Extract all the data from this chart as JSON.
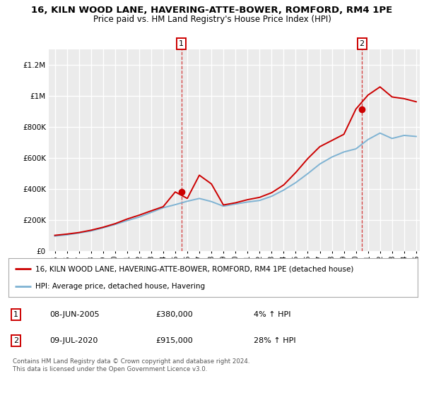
{
  "title_line1": "16, KILN WOOD LANE, HAVERING-ATTE-BOWER, ROMFORD, RM4 1PE",
  "title_line2": "Price paid vs. HM Land Registry's House Price Index (HPI)",
  "ylim": [
    0,
    1300000
  ],
  "yticks": [
    0,
    200000,
    400000,
    600000,
    800000,
    1000000,
    1200000
  ],
  "ytick_labels": [
    "£0",
    "£200K",
    "£400K",
    "£600K",
    "£800K",
    "£1M",
    "£1.2M"
  ],
  "background_color": "#ffffff",
  "plot_bg_color": "#ebebeb",
  "grid_color": "#ffffff",
  "marker1_value": 380000,
  "marker2_value": 915000,
  "legend_line1": "16, KILN WOOD LANE, HAVERING-ATTE-BOWER, ROMFORD, RM4 1PE (detached house)",
  "legend_line2": "HPI: Average price, detached house, Havering",
  "annotation1_date": "08-JUN-2005",
  "annotation1_price": "£380,000",
  "annotation1_hpi": "4% ↑ HPI",
  "annotation2_date": "09-JUL-2020",
  "annotation2_price": "£915,000",
  "annotation2_hpi": "28% ↑ HPI",
  "footer": "Contains HM Land Registry data © Crown copyright and database right 2024.\nThis data is licensed under the Open Government Licence v3.0.",
  "red_line_color": "#cc0000",
  "blue_line_color": "#7fb3d3",
  "marker_color": "#cc0000",
  "hpi_years": [
    1995,
    1996,
    1997,
    1998,
    1999,
    2000,
    2001,
    2002,
    2003,
    2004,
    2005,
    2006,
    2007,
    2008,
    2009,
    2010,
    2011,
    2012,
    2013,
    2014,
    2015,
    2016,
    2017,
    2018,
    2019,
    2020,
    2021,
    2022,
    2023,
    2024,
    2025
  ],
  "hpi_values": [
    95000,
    103000,
    115000,
    128000,
    148000,
    170000,
    195000,
    218000,
    248000,
    278000,
    298000,
    320000,
    338000,
    318000,
    288000,
    302000,
    315000,
    325000,
    352000,
    392000,
    440000,
    498000,
    560000,
    605000,
    638000,
    658000,
    718000,
    760000,
    725000,
    745000,
    738000
  ],
  "price_years": [
    1995,
    1996,
    1997,
    1998,
    1999,
    2000,
    2001,
    2002,
    2003,
    2004,
    2005,
    2006,
    2007,
    2008,
    2009,
    2010,
    2011,
    2012,
    2013,
    2014,
    2015,
    2016,
    2017,
    2018,
    2019,
    2020,
    2021,
    2022,
    2023,
    2024,
    2025
  ],
  "price_values": [
    100000,
    108000,
    118000,
    133000,
    152000,
    175000,
    205000,
    230000,
    258000,
    285000,
    380000,
    338000,
    488000,
    432000,
    296000,
    310000,
    330000,
    345000,
    375000,
    425000,
    505000,
    595000,
    672000,
    712000,
    752000,
    915000,
    1005000,
    1058000,
    993000,
    982000,
    962000
  ],
  "vline1_x": 2005.5,
  "vline2_x": 2020.5,
  "xmin": 1995,
  "xmax": 2025
}
